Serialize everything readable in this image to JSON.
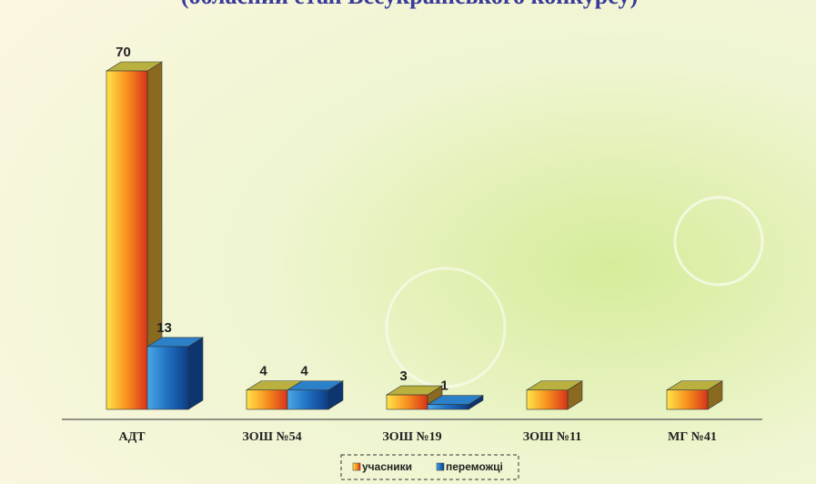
{
  "chart_data": {
    "type": "bar3d",
    "title": "(обласний етап Всеукраїнського конкурсу)",
    "categories": [
      "АДТ",
      "ЗОШ №54",
      "ЗОШ №19",
      "ЗОШ №11",
      "МГ №41"
    ],
    "series": [
      {
        "name": "учасники",
        "color": "#f28c1e",
        "values": [
          70,
          4,
          3,
          4,
          4
        ],
        "value_labels": [
          "70",
          "4",
          "3",
          null,
          null
        ]
      },
      {
        "name": "переможці",
        "color": "#1f6fc0",
        "values": [
          13,
          4,
          1,
          null,
          null
        ],
        "value_labels": [
          "13",
          "4",
          "1",
          null,
          null
        ]
      }
    ],
    "legend": "bottom"
  }
}
